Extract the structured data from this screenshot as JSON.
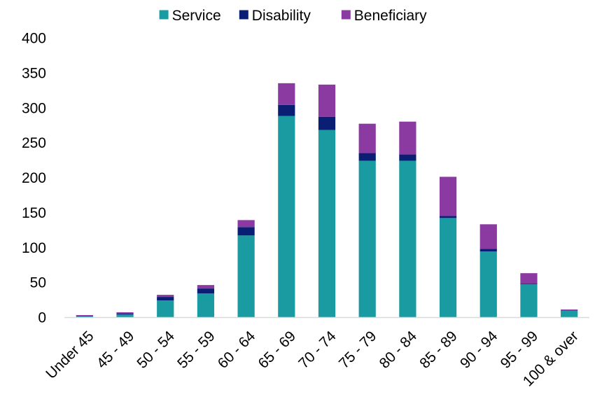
{
  "chart_data": {
    "type": "bar",
    "stacked": true,
    "title": "",
    "xlabel": "",
    "ylabel": "",
    "ylim": [
      0,
      400
    ],
    "yticks": [
      0,
      50,
      100,
      150,
      200,
      250,
      300,
      350,
      400
    ],
    "categories": [
      "Under 45",
      "45 - 49",
      "50 - 54",
      "55 - 59",
      "60 - 64",
      "65 - 69",
      "70 - 74",
      "75 - 79",
      "80 - 84",
      "85 - 89",
      "90 - 94",
      "95 - 99",
      "100 & over"
    ],
    "series": [
      {
        "name": "Service",
        "color": "#1a9ba1",
        "values": [
          1,
          4,
          24,
          34,
          117,
          288,
          268,
          224,
          224,
          142,
          94,
          47,
          9
        ]
      },
      {
        "name": "Disability",
        "color": "#0a1f74",
        "values": [
          0,
          1,
          5,
          7,
          12,
          16,
          19,
          11,
          9,
          3,
          4,
          1,
          0
        ]
      },
      {
        "name": "Beneficiary",
        "color": "#8b3aa2",
        "values": [
          2,
          2,
          3,
          5,
          10,
          31,
          46,
          42,
          47,
          56,
          35,
          15,
          2
        ]
      }
    ],
    "legend_position": "top-center",
    "grid": false
  }
}
